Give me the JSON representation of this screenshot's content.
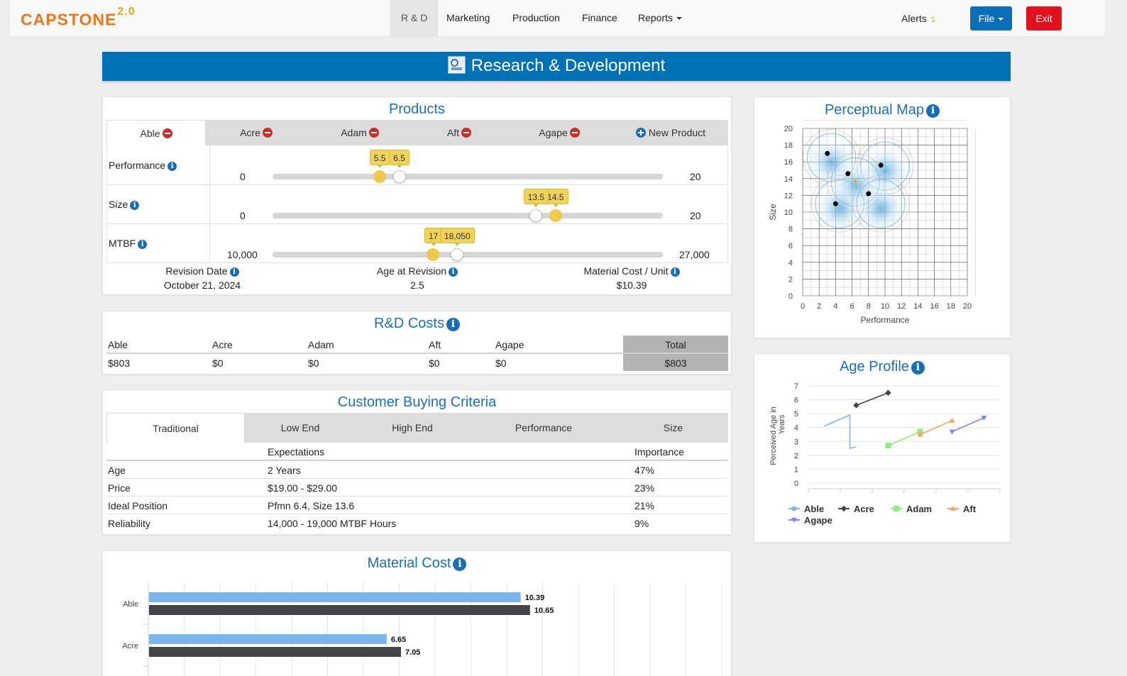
{
  "nav": {
    "logo": "CAPSTONE",
    "logo_version": "2.0",
    "links": [
      "R & D",
      "Marketing",
      "Production",
      "Finance",
      "Reports"
    ],
    "alerts_label": "Alerts",
    "alerts_count": "1",
    "file_label": "File",
    "exit_label": "Exit"
  },
  "banner": {
    "title": "Research & Development"
  },
  "products": {
    "title": "Products",
    "tabs": [
      "Able",
      "Acre",
      "Adam",
      "Aft",
      "Agape"
    ],
    "new_product": "New Product",
    "sliders": [
      {
        "label": "Performance",
        "min": "0",
        "max": "20",
        "min_value": 0,
        "max_value": 20,
        "previous": 5.5,
        "current": 6.5,
        "previous_label": "5.5",
        "current_label": "6.5"
      },
      {
        "label": "Size",
        "min": "0",
        "max": "20",
        "min_value": 0,
        "max_value": 20,
        "previous": 14.5,
        "current": 13.5,
        "previous_label": "14.5",
        "current_label": "13.5"
      },
      {
        "label": "MTBF",
        "min": "10,000",
        "max": "27,000",
        "min_value": 10000,
        "max_value": 27000,
        "previous": 17000,
        "current": 18050,
        "previous_label": "17",
        "current_label": "18,050"
      }
    ],
    "revision_date_label": "Revision Date",
    "revision_date": "October 21, 2024",
    "age_label": "Age at Revision",
    "age": "2.5",
    "material_label": "Material Cost / Unit",
    "material": "$10.39"
  },
  "rd_costs": {
    "title": "R&D Costs",
    "headers": [
      "Able",
      "Acre",
      "Adam",
      "Aft",
      "Agape",
      "Total"
    ],
    "values": [
      "$803",
      "$0",
      "$0",
      "$0",
      "$0",
      "$803"
    ]
  },
  "criteria": {
    "title": "Customer Buying Criteria",
    "tabs": [
      "Traditional",
      "Low End",
      "High End",
      "Performance",
      "Size"
    ],
    "col_expectations": "Expectations",
    "col_importance": "Importance",
    "rows": [
      {
        "name": "Age",
        "expectation": "2 Years",
        "importance": "47%"
      },
      {
        "name": "Price",
        "expectation": "$19.00 - $29.00",
        "importance": "23%"
      },
      {
        "name": "Ideal Position",
        "expectation": "Pfmn 6.4, Size 13.6",
        "importance": "21%"
      },
      {
        "name": "Reliability",
        "expectation": "14,000 - 19,000 MTBF Hours",
        "importance": "9%"
      }
    ]
  },
  "material_cost": {
    "title": "Material Cost",
    "chart_data": {
      "type": "bar",
      "orientation": "horizontal",
      "categories": [
        "Able",
        "Acre"
      ],
      "series": [
        {
          "values": [
            10.39,
            6.65
          ],
          "color": "#7cb5ec"
        },
        {
          "values": [
            10.65,
            7.05
          ],
          "color": "#434348"
        }
      ],
      "xlim": [
        0,
        16
      ],
      "grid": true
    }
  },
  "perceptual_map": {
    "title": "Perceptual Map",
    "chart_data": {
      "type": "scatter",
      "xlabel": "Performance",
      "ylabel": "Size",
      "xlim": [
        0,
        20
      ],
      "ylim": [
        0,
        20
      ],
      "ticks": [
        "0",
        "2",
        "4",
        "6",
        "8",
        "10",
        "12",
        "14",
        "16",
        "18",
        "20"
      ],
      "points": [
        [
          3,
          17
        ],
        [
          5.5,
          14.6
        ],
        [
          9.5,
          15.6
        ],
        [
          8,
          12.2
        ],
        [
          4,
          11
        ]
      ],
      "highlight": [
        6.4,
        13.6
      ],
      "segment_circles": [
        [
          3.5,
          16.5
        ],
        [
          10,
          15.5
        ],
        [
          6.4,
          13.6
        ],
        [
          4.5,
          11
        ],
        [
          9.5,
          11
        ]
      ],
      "grid": true
    }
  },
  "age_profile": {
    "title": "Age Profile",
    "chart_data": {
      "type": "line",
      "ylabel": "Perceived Age in Years",
      "ylim": [
        0,
        7
      ],
      "yticks": [
        "0",
        "1",
        "2",
        "3",
        "4",
        "5",
        "6",
        "7"
      ],
      "xlim": [
        0,
        6
      ],
      "series": [
        {
          "name": "Able",
          "color": "#7cb5ec",
          "points": [
            [
              0.5,
              4.1
            ],
            [
              1.3,
              4.9
            ],
            [
              1.3,
              2.5
            ],
            [
              1.5,
              2.6
            ]
          ]
        },
        {
          "name": "Acre",
          "color": "#434348",
          "points": [
            [
              1.5,
              5.6
            ],
            [
              2.5,
              6.5
            ]
          ]
        },
        {
          "name": "Adam",
          "color": "#90ed7d",
          "points": [
            [
              2.5,
              2.7
            ],
            [
              3.5,
              3.7
            ]
          ]
        },
        {
          "name": "Aft",
          "color": "#f7a35c",
          "points": [
            [
              3.5,
              3.5
            ],
            [
              4.5,
              4.5
            ]
          ]
        },
        {
          "name": "Agape",
          "color": "#8085e9",
          "points": [
            [
              4.5,
              3.7
            ],
            [
              5.5,
              4.7
            ]
          ]
        }
      ],
      "legend": "bottom",
      "grid": true
    }
  }
}
